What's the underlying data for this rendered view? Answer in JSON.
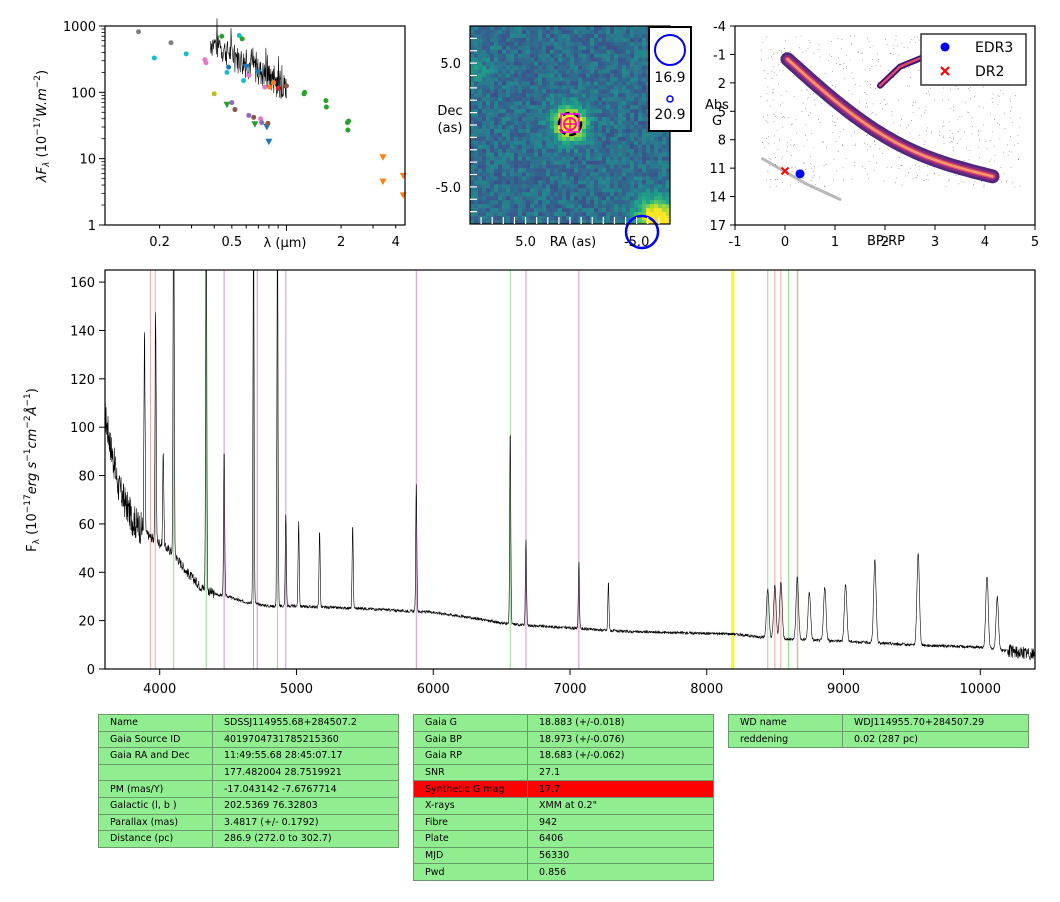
{
  "colors": {
    "highlight": "#ff0000",
    "table_bg": "#90ee90",
    "accent_blue": "#0000ff"
  },
  "chart_data": [
    {
      "type": "scatter",
      "panel": "sed",
      "xlabel": "λ (μm)",
      "ylabel": "λF_λ (10^-17 W.m^-2)",
      "xscale": "log",
      "yscale": "log",
      "xlim": [
        0.1,
        4.5
      ],
      "ylim": [
        1,
        1000
      ],
      "xticks": [
        0.2,
        0.5,
        2,
        4
      ],
      "xtick_labels": [
        "0.2",
        "0.5",
        "2",
        "4"
      ],
      "yticks": [
        1,
        10,
        100,
        1000
      ],
      "ytick_labels": [
        "1",
        "10",
        "100",
        "1000"
      ],
      "points": [
        {
          "x": 0.153,
          "y": 820,
          "color": "#7f7f7f",
          "m": "o"
        },
        {
          "x": 0.231,
          "y": 560,
          "color": "#7f7f7f",
          "m": "o"
        },
        {
          "x": 0.187,
          "y": 330,
          "color": "#17becf",
          "m": "o"
        },
        {
          "x": 0.28,
          "y": 380,
          "color": "#17becf",
          "m": "o"
        },
        {
          "x": 0.355,
          "y": 310,
          "color": "#e377c2",
          "m": "o"
        },
        {
          "x": 0.36,
          "y": 280,
          "color": "#e377c2",
          "m": "o"
        },
        {
          "x": 0.4,
          "y": 95,
          "color": "#bcbd22",
          "m": "o"
        },
        {
          "x": 0.44,
          "y": 700,
          "color": "#2ca02c",
          "m": "o"
        },
        {
          "x": 0.47,
          "y": 200,
          "color": "#17becf",
          "m": "o"
        },
        {
          "x": 0.48,
          "y": 240,
          "color": "#1f77b4",
          "m": "o"
        },
        {
          "x": 0.5,
          "y": 70,
          "color": "#9467bd",
          "m": "o"
        },
        {
          "x": 0.47,
          "y": 65,
          "color": "#2ca02c",
          "m": "v"
        },
        {
          "x": 0.52,
          "y": 55,
          "color": "#8c564b",
          "m": "o"
        },
        {
          "x": 0.55,
          "y": 720,
          "color": "#17becf",
          "m": "o"
        },
        {
          "x": 0.57,
          "y": 640,
          "color": "#2ca02c",
          "m": "o"
        },
        {
          "x": 0.58,
          "y": 150,
          "color": "#17becf",
          "m": "o"
        },
        {
          "x": 0.6,
          "y": 240,
          "color": "#1f77b4",
          "m": "v"
        },
        {
          "x": 0.62,
          "y": 45,
          "color": "#9467bd",
          "m": "o"
        },
        {
          "x": 0.62,
          "y": 180,
          "color": "#e377c2",
          "m": "o"
        },
        {
          "x": 0.66,
          "y": 42,
          "color": "#8c564b",
          "m": "o"
        },
        {
          "x": 0.67,
          "y": 33,
          "color": "#2ca02c",
          "m": "v"
        },
        {
          "x": 0.7,
          "y": 200,
          "color": "#1f77b4",
          "m": "v"
        },
        {
          "x": 0.72,
          "y": 40,
          "color": "#e377c2",
          "m": "o"
        },
        {
          "x": 0.73,
          "y": 35,
          "color": "#9467bd",
          "m": "o"
        },
        {
          "x": 0.76,
          "y": 120,
          "color": "#e377c2",
          "m": "o"
        },
        {
          "x": 0.78,
          "y": 30,
          "color": "#1f77b4",
          "m": "v"
        },
        {
          "x": 0.8,
          "y": 18,
          "color": "#1f77b4",
          "m": "v"
        },
        {
          "x": 0.79,
          "y": 34,
          "color": "#8c564b",
          "m": "o"
        },
        {
          "x": 0.81,
          "y": 120,
          "color": "#ff7f0e",
          "m": "o"
        },
        {
          "x": 0.85,
          "y": 140,
          "color": "#ff7f0e",
          "m": "o"
        },
        {
          "x": 0.9,
          "y": 115,
          "color": "#d62728",
          "m": "o"
        },
        {
          "x": 1.0,
          "y": 125,
          "color": "#8c564b",
          "m": "o"
        },
        {
          "x": 1.25,
          "y": 95,
          "color": "#2ca02c",
          "m": "o"
        },
        {
          "x": 1.26,
          "y": 100,
          "color": "#2ca02c",
          "m": "o"
        },
        {
          "x": 1.65,
          "y": 75,
          "color": "#2ca02c",
          "m": "o"
        },
        {
          "x": 1.66,
          "y": 60,
          "color": "#2ca02c",
          "m": "o"
        },
        {
          "x": 2.17,
          "y": 35,
          "color": "#2ca02c",
          "m": "o"
        },
        {
          "x": 2.18,
          "y": 27,
          "color": "#2ca02c",
          "m": "o"
        },
        {
          "x": 2.2,
          "y": 37,
          "color": "#2ca02c",
          "m": "o"
        },
        {
          "x": 3.4,
          "y": 10.5,
          "color": "#ff7f0e",
          "m": "v"
        },
        {
          "x": 3.4,
          "y": 4.5,
          "color": "#ff7f0e",
          "m": "v"
        },
        {
          "x": 4.4,
          "y": 5.5,
          "color": "#ff7f0e",
          "m": "v"
        },
        {
          "x": 4.4,
          "y": 2.8,
          "color": "#ff7f0e",
          "m": "v"
        }
      ]
    },
    {
      "type": "heatmap",
      "panel": "image",
      "xlabel": "RA (as)",
      "ylabel": "Dec (as)",
      "xlim": [
        10,
        -8
      ],
      "ylim": [
        -8,
        8
      ],
      "xticks": [
        5.0,
        -5.0
      ],
      "xtick_labels": [
        "5.0",
        "-5.0"
      ],
      "yticks": [
        5.0,
        -5.0
      ],
      "ytick_labels": [
        "5.0",
        "-5.0"
      ],
      "legend": [
        {
          "label": "16.9"
        },
        {
          "label": "20.9"
        }
      ]
    },
    {
      "type": "scatter",
      "panel": "hrd",
      "xlabel": "BP-RP",
      "ylabel": "Abs G",
      "xlim": [
        -1,
        5
      ],
      "ylim": [
        17,
        -4
      ],
      "xticks": [
        -1,
        0,
        1,
        2,
        3,
        4,
        5
      ],
      "xtick_labels": [
        "-1",
        "0",
        "1",
        "2",
        "3",
        "4",
        "5"
      ],
      "yticks": [
        -4,
        -1,
        2,
        5,
        8,
        11,
        14,
        17
      ],
      "ytick_labels": [
        "-4",
        "-1",
        "2",
        "5",
        "8",
        "11",
        "14",
        "17"
      ],
      "legend_position": "top-right",
      "series": [
        {
          "name": "EDR3",
          "x": [
            0.3
          ],
          "y": [
            11.6
          ],
          "color": "#0000ff",
          "marker": "o"
        },
        {
          "name": "DR2",
          "x": [
            0.0
          ],
          "y": [
            11.3
          ],
          "color": "#ff0000",
          "marker": "x"
        }
      ]
    },
    {
      "type": "line",
      "panel": "spectrum",
      "ylabel": "F_λ (10^-17 erg s^-1 cm^-2 Å^-1)",
      "xlim": [
        3600,
        10400
      ],
      "ylim": [
        0,
        165
      ],
      "xticks": [
        4000,
        5000,
        6000,
        7000,
        8000,
        9000,
        10000
      ],
      "xtick_labels": [
        "4000",
        "5000",
        "6000",
        "7000",
        "8000",
        "9000",
        "10000"
      ],
      "yticks": [
        0,
        20,
        40,
        60,
        80,
        100,
        120,
        140,
        160
      ],
      "ytick_labels": [
        "0",
        "20",
        "40",
        "60",
        "80",
        "100",
        "120",
        "140",
        "160"
      ],
      "continuum": [
        [
          3600,
          105
        ],
        [
          3700,
          75
        ],
        [
          3800,
          62
        ],
        [
          3900,
          56
        ],
        [
          4000,
          52
        ],
        [
          4100,
          48
        ],
        [
          4200,
          40
        ],
        [
          4300,
          34
        ],
        [
          4400,
          31
        ],
        [
          4500,
          30
        ],
        [
          4600,
          28
        ],
        [
          4700,
          27
        ],
        [
          4800,
          26
        ],
        [
          5000,
          26
        ],
        [
          5200,
          25.5
        ],
        [
          5500,
          25
        ],
        [
          5800,
          24
        ],
        [
          6000,
          23.5
        ],
        [
          6300,
          21
        ],
        [
          6500,
          19
        ],
        [
          6700,
          18
        ],
        [
          7000,
          17
        ],
        [
          7400,
          15.5
        ],
        [
          7800,
          15
        ],
        [
          8200,
          14.5
        ],
        [
          8500,
          12.5
        ],
        [
          9000,
          11.5
        ],
        [
          9500,
          10
        ],
        [
          10000,
          9
        ],
        [
          10400,
          6
        ]
      ],
      "emission_lines": [
        [
          3889,
          80
        ],
        [
          3970,
          95
        ],
        [
          4026,
          40
        ],
        [
          4102,
          160
        ],
        [
          4340,
          160
        ],
        [
          4471,
          60
        ],
        [
          4686,
          160
        ],
        [
          4861,
          160
        ],
        [
          4922,
          38
        ],
        [
          5016,
          35
        ],
        [
          5169,
          32
        ],
        [
          5411,
          34
        ],
        [
          5876,
          52
        ],
        [
          6563,
          80
        ],
        [
          6678,
          36
        ],
        [
          7065,
          28
        ],
        [
          7281,
          20
        ],
        [
          8446,
          20
        ],
        [
          8498,
          22
        ],
        [
          8542,
          24
        ],
        [
          8662,
          26
        ],
        [
          8750,
          20
        ],
        [
          8863,
          22
        ],
        [
          9015,
          24
        ],
        [
          9229,
          34
        ],
        [
          9546,
          38
        ],
        [
          10049,
          30
        ],
        [
          10124,
          22
        ]
      ],
      "vlines": [
        {
          "x": 3933,
          "color": "#f4a4a4"
        },
        {
          "x": 3968,
          "color": "#f4a4a4"
        },
        {
          "x": 4102,
          "color": "#90e090"
        },
        {
          "x": 4340,
          "color": "#90e090"
        },
        {
          "x": 4471,
          "color": "#d890d8"
        },
        {
          "x": 4686,
          "color": "#d890d8"
        },
        {
          "x": 4713,
          "color": "#d890d8"
        },
        {
          "x": 4861,
          "color": "#90e090"
        },
        {
          "x": 4922,
          "color": "#d890d8"
        },
        {
          "x": 5876,
          "color": "#d890d8"
        },
        {
          "x": 6563,
          "color": "#90e090"
        },
        {
          "x": 6678,
          "color": "#d890d8"
        },
        {
          "x": 7065,
          "color": "#d890d8"
        },
        {
          "x": 8183,
          "color": "#ffff00"
        },
        {
          "x": 8195,
          "color": "#ffff00"
        },
        {
          "x": 8446,
          "color": "#90e090"
        },
        {
          "x": 8498,
          "color": "#f4a4a4"
        },
        {
          "x": 8542,
          "color": "#f4a4a4"
        },
        {
          "x": 8598,
          "color": "#90e090"
        },
        {
          "x": 8662,
          "color": "#f4a4a4"
        },
        {
          "x": 8665,
          "color": "#90e090"
        }
      ]
    }
  ],
  "tables": {
    "t1": [
      [
        "Name",
        "SDSSJ114955.68+284507.2"
      ],
      [
        "Gaia Source ID",
        "4019704731785215360"
      ],
      [
        "Gaia RA and Dec",
        "11:49:55.68    28:45:07.17"
      ],
      [
        "",
        "177.482004    28.7519921"
      ],
      [
        "PM (mas/Y)",
        "-17.043142    -7.6767714"
      ],
      [
        "Galactic (l, b )",
        "202.5369    76.32803"
      ],
      [
        "Parallax (mas)",
        "3.4817 (+/- 0.1792)"
      ],
      [
        "Distance (pc)",
        "286.9 (272.0 to 302.7)"
      ]
    ],
    "t2": [
      [
        "Gaia G",
        "18.883 (+/-0.018)"
      ],
      [
        "Gaia BP",
        "18.973 (+/-0.076)"
      ],
      [
        "Gaia RP",
        "18.683 (+/-0.062)"
      ],
      [
        "SNR",
        "27.1"
      ],
      [
        "Synthetic G mag",
        "17.7"
      ],
      [
        "X-rays",
        "XMM at 0.2\""
      ],
      [
        "Fibre",
        "942"
      ],
      [
        "Plate",
        "6406"
      ],
      [
        "MJD",
        "56330"
      ],
      [
        "Pwd",
        "0.856"
      ]
    ],
    "t3": [
      [
        "WD name",
        "WDJ114955.70+284507.29"
      ],
      [
        "reddening",
        "0.02 (287 pc)"
      ]
    ]
  }
}
